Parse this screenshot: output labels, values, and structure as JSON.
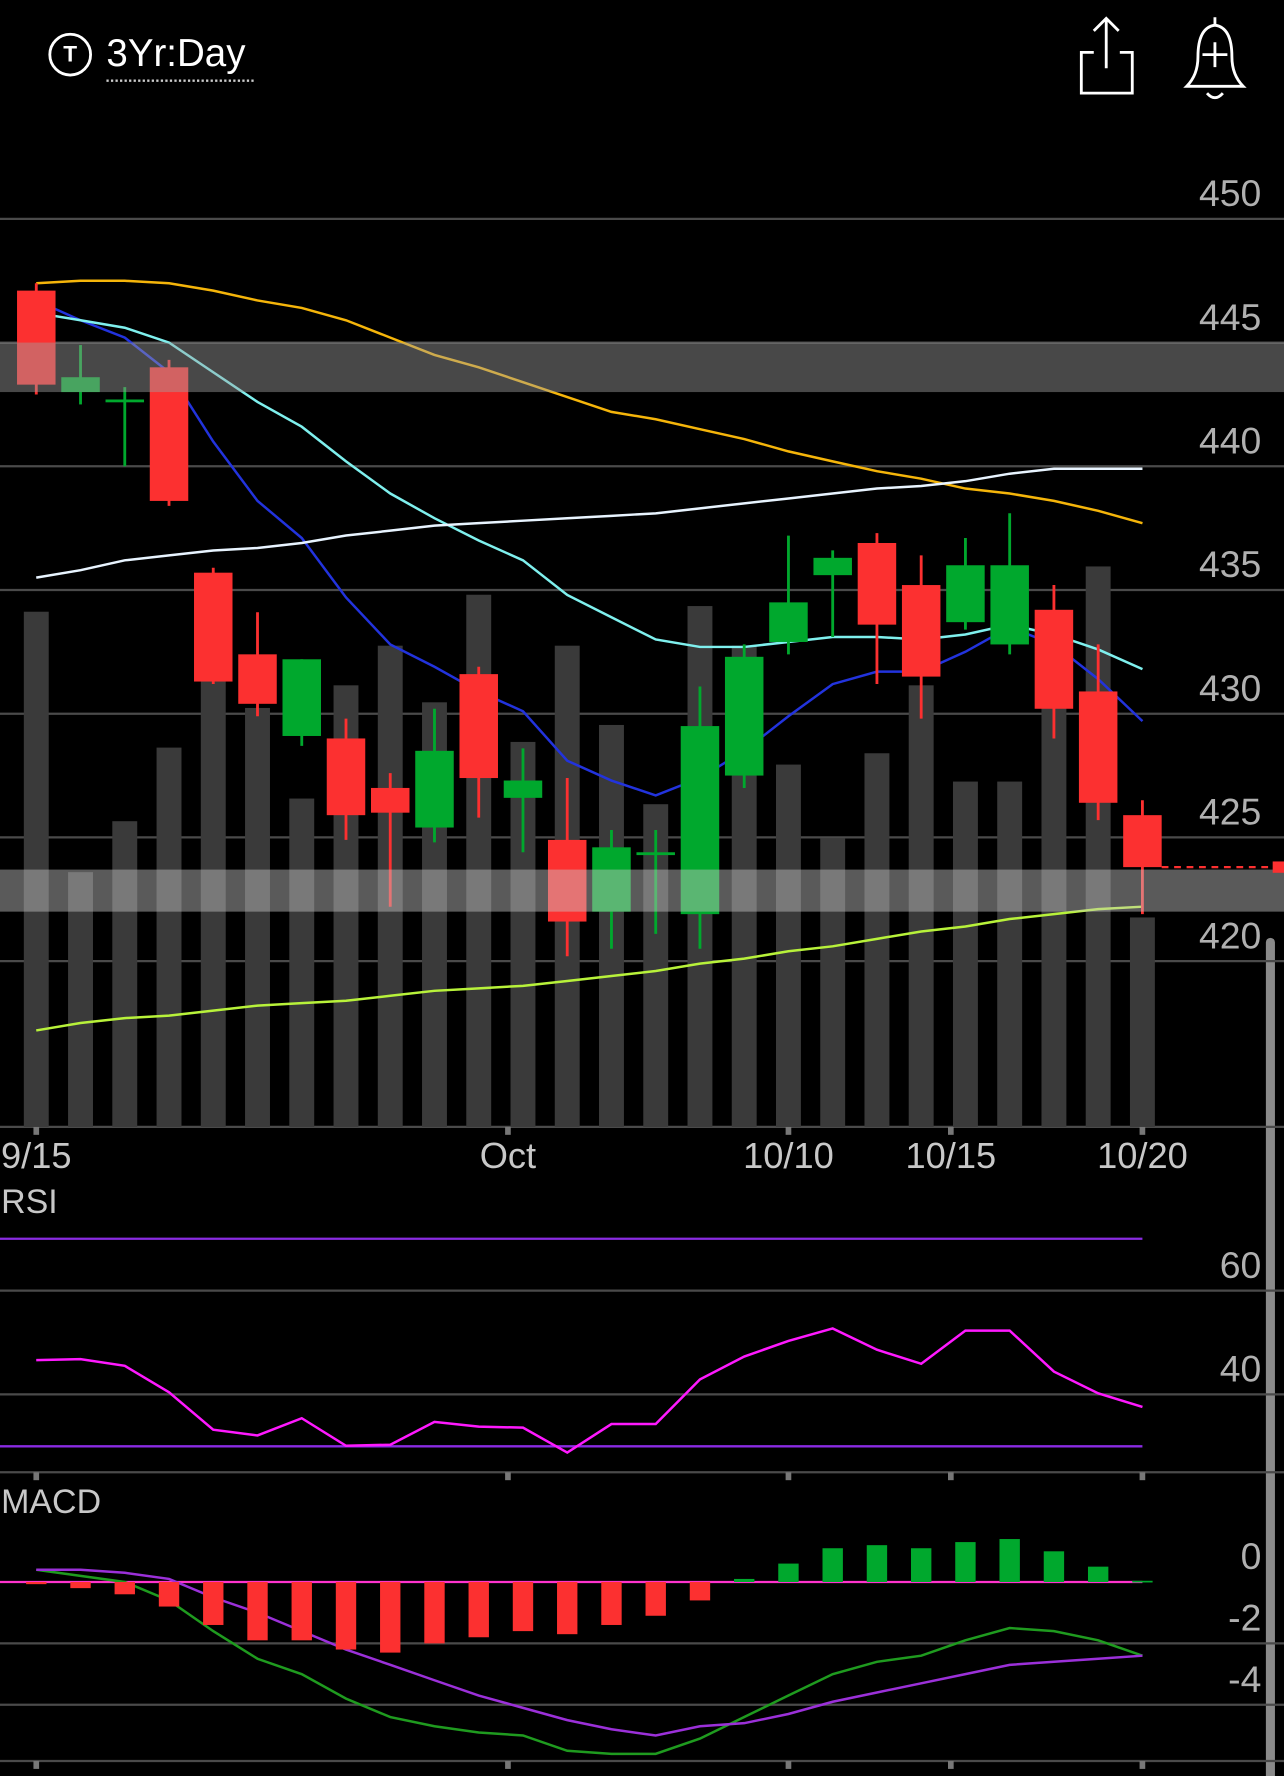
{
  "header": {
    "icon_letter": "T",
    "title": "3Yr:Day"
  },
  "chart_data": [
    {
      "type": "candlestick",
      "xlim": [
        -0.82,
        28.2
      ],
      "xticks": [
        {
          "value": 0,
          "label": "9/15"
        },
        {
          "value": 10.66,
          "label": "Oct"
        },
        {
          "value": 17,
          "label": "10/10"
        },
        {
          "value": 20.67,
          "label": "10/15"
        },
        {
          "value": 25,
          "label": "10/20"
        }
      ],
      "ylim": [
        413.3,
        453.8
      ],
      "yticks": [
        420,
        425,
        430,
        435,
        440,
        445,
        450
      ],
      "grid": true,
      "colors": {
        "up": "#00a82d",
        "down": "#fc3030"
      },
      "open": [
        447.1,
        443.0,
        442.7,
        444.0,
        435.7,
        432.4,
        429.1,
        429.0,
        427.0,
        425.4,
        431.6,
        426.6,
        424.9,
        422.0,
        424.4,
        421.9,
        427.5,
        432.9,
        435.6,
        436.9,
        435.2,
        433.7,
        432.8,
        434.2,
        430.9,
        425.9
      ],
      "high": [
        447.4,
        444.9,
        443.2,
        444.3,
        435.9,
        434.1,
        432.2,
        429.8,
        427.6,
        430.2,
        431.9,
        428.6,
        427.4,
        425.3,
        425.3,
        431.1,
        432.8,
        437.2,
        436.6,
        437.3,
        436.4,
        437.1,
        438.1,
        435.2,
        432.8,
        426.5
      ],
      "low": [
        442.9,
        442.5,
        440.0,
        438.4,
        431.2,
        429.9,
        428.7,
        424.9,
        422.2,
        424.8,
        425.8,
        424.4,
        420.2,
        420.5,
        421.1,
        420.5,
        427.0,
        432.4,
        433.1,
        431.2,
        429.8,
        433.4,
        432.4,
        429.0,
        425.7,
        421.9
      ],
      "close": [
        443.3,
        443.6,
        442.7,
        438.6,
        431.3,
        430.4,
        432.2,
        425.9,
        426.0,
        428.5,
        427.4,
        427.3,
        421.6,
        424.6,
        424.4,
        429.5,
        432.3,
        434.5,
        436.3,
        433.6,
        431.5,
        436.0,
        436.0,
        430.2,
        426.4,
        423.8
      ],
      "volume": [
        91,
        45,
        54,
        67,
        80,
        74,
        58,
        78,
        85,
        75,
        94,
        68,
        85,
        71,
        57,
        92,
        85,
        64,
        51,
        66,
        78,
        61,
        61,
        75,
        99,
        37
      ],
      "volume_color": "#3a3a3a",
      "vlim": [
        0,
        160
      ],
      "series": [
        {
          "color": "#2233dd",
          "values": [
            446.7,
            445.9,
            445.2,
            443.8,
            441.0,
            438.6,
            437.1,
            434.7,
            432.8,
            431.9,
            430.9,
            430.1,
            428.1,
            427.3,
            426.7,
            427.4,
            428.5,
            429.9,
            431.2,
            431.7,
            431.7,
            432.5,
            433.5,
            432.8,
            431.4,
            429.7
          ]
        },
        {
          "color": "#7ff0ee",
          "values": [
            446.2,
            445.9,
            445.6,
            445.0,
            443.8,
            442.6,
            441.6,
            440.2,
            438.9,
            437.9,
            437.0,
            436.2,
            434.8,
            433.9,
            433.0,
            432.7,
            432.7,
            432.9,
            433.1,
            433.1,
            433.0,
            433.2,
            433.6,
            433.2,
            432.6,
            431.8
          ]
        },
        {
          "color": "#f5b50a",
          "values": [
            447.4,
            447.5,
            447.5,
            447.4,
            447.1,
            446.7,
            446.4,
            445.9,
            445.2,
            444.5,
            444.0,
            443.4,
            442.8,
            442.2,
            441.9,
            441.5,
            441.1,
            440.6,
            440.2,
            439.8,
            439.5,
            439.1,
            438.9,
            438.6,
            438.2,
            437.7
          ]
        },
        {
          "color": "#e8f4ff",
          "values": [
            435.5,
            435.8,
            436.2,
            436.4,
            436.6,
            436.7,
            436.9,
            437.2,
            437.4,
            437.6,
            437.7,
            437.8,
            437.9,
            438.0,
            438.1,
            438.3,
            438.5,
            438.7,
            438.9,
            439.1,
            439.2,
            439.4,
            439.7,
            439.9,
            439.9,
            439.9
          ]
        },
        {
          "color": "#b8f23a",
          "values": [
            417.2,
            417.5,
            417.7,
            417.8,
            418.0,
            418.2,
            418.3,
            418.4,
            418.6,
            418.8,
            418.9,
            419.0,
            419.2,
            419.4,
            419.6,
            419.9,
            420.1,
            420.4,
            420.6,
            420.9,
            421.2,
            421.4,
            421.7,
            421.9,
            422.1,
            422.2
          ]
        }
      ],
      "bands": [
        {
          "range": [
            443.0,
            445.0
          ],
          "color": "rgba(160,160,160,0.45)"
        },
        {
          "range": [
            422.0,
            423.7
          ],
          "color": "rgba(200,200,200,0.45)"
        }
      ],
      "last_price_color": "#fc3030"
    },
    {
      "type": "line",
      "title": "RSI",
      "ylim": [
        25,
        73
      ],
      "yticks": [
        40,
        60
      ],
      "grid": true,
      "levels": [
        70,
        30
      ],
      "level_color": "#8a2be2",
      "series": [
        {
          "color": "#ff19ff",
          "values": [
            46.6,
            46.8,
            45.5,
            40.4,
            33.2,
            32.1,
            35.4,
            30.1,
            30.3,
            34.7,
            33.8,
            33.6,
            28.8,
            34.3,
            34.3,
            42.9,
            47.3,
            50.3,
            52.7,
            48.6,
            45.9,
            52.3,
            52.3,
            44.4,
            40.2,
            37.6
          ]
        }
      ]
    },
    {
      "type": "macd",
      "title": "MACD",
      "ylim": [
        -6.2,
        2.1
      ],
      "yticks": [
        -4,
        -2,
        0
      ],
      "grid": true,
      "zero_line_color": "#ff33cc",
      "colors": {
        "up": "#00a82d",
        "down": "#fc3030"
      },
      "histogram": [
        -0.07,
        -0.2,
        -0.4,
        -0.8,
        -1.4,
        -1.9,
        -1.9,
        -2.2,
        -2.3,
        -2.0,
        -1.8,
        -1.6,
        -1.7,
        -1.4,
        -1.1,
        -0.6,
        0.1,
        0.6,
        1.1,
        1.2,
        1.1,
        1.3,
        1.4,
        1.0,
        0.5,
        0.04
      ],
      "series": [
        {
          "color": "#1f9b1f",
          "values": [
            0.4,
            0.2,
            0.0,
            -0.6,
            -1.6,
            -2.5,
            -3.0,
            -3.8,
            -4.4,
            -4.7,
            -4.9,
            -5.0,
            -5.5,
            -5.6,
            -5.6,
            -5.1,
            -4.4,
            -3.7,
            -3.0,
            -2.6,
            -2.4,
            -1.9,
            -1.5,
            -1.6,
            -1.9,
            -2.4
          ]
        },
        {
          "color": "#9b30d9",
          "values": [
            0.4,
            0.4,
            0.3,
            0.1,
            -0.5,
            -1.0,
            -1.6,
            -2.2,
            -2.7,
            -3.2,
            -3.7,
            -4.1,
            -4.5,
            -4.8,
            -5.0,
            -4.7,
            -4.6,
            -4.3,
            -3.9,
            -3.6,
            -3.3,
            -3.0,
            -2.7,
            -2.6,
            -2.5,
            -2.4
          ]
        }
      ]
    }
  ]
}
